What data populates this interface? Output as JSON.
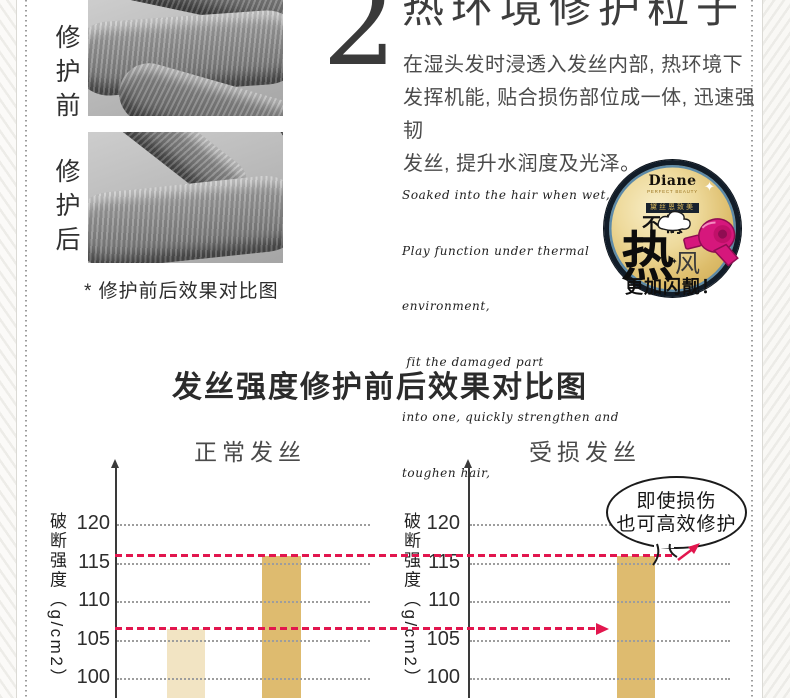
{
  "repair_compare": {
    "before_label": "修护前",
    "after_label": "修护后",
    "caption": "* 修护前后效果对比图"
  },
  "section": {
    "number": "2",
    "heading": "热环境修护粒子",
    "body_lines": [
      "在湿头发时浸透入发丝内部, 热环境下",
      "发挥机能, 贴合损伤部位成一体, 迅速强韧",
      "发丝, 提升水润度及光泽。"
    ],
    "english_lines": [
      "Soaked into the hair when wet,",
      "Play function under thermal",
      "environment,",
      " fit the damaged part",
      "into one, quickly strengthen and",
      "toughen hair,"
    ]
  },
  "badge": {
    "brand": "Diane",
    "brand_sub": "PERFECT BEAUTY",
    "brand_cn": "黛丝恩致美",
    "text_top": "不惧",
    "text_big": "热",
    "text_wind": "风",
    "text_bottom": "更加闪靓！",
    "gold": "#e8cf8e",
    "ring_blue": "#5d8aa8",
    "ring_dark": "#111c28",
    "dryer_pink": "#d6177c"
  },
  "chart_data": {
    "type": "bar",
    "title": "发丝强度修护前后效果对比图",
    "ylabel": "破断强度（g/cm2）",
    "ylim": [
      97,
      123
    ],
    "yticks": [
      100,
      105,
      110,
      115,
      120
    ],
    "grid": true,
    "charts": [
      {
        "title": "正常发丝",
        "values": [
          106.5,
          116
        ],
        "bar_colors": [
          "#f2e4c3",
          "#debb6f"
        ]
      },
      {
        "title": "受损发丝",
        "values": [
          116
        ],
        "bar_colors": [
          "#debb6f"
        ],
        "annotation_lines": [
          "即使损伤",
          "也可高效修护"
        ]
      }
    ],
    "reference_lines": [
      {
        "value": 116
      },
      {
        "value": 106.5
      }
    ],
    "reference_color": "#e2164e"
  }
}
